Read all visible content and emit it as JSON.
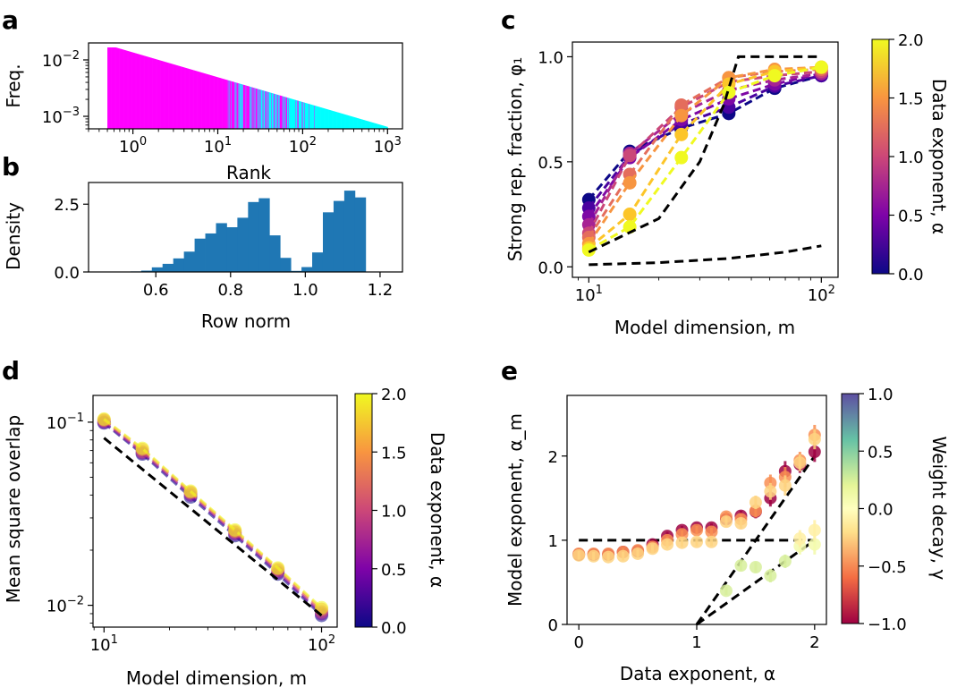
{
  "figure": {
    "panel_labels": [
      "a",
      "b",
      "c",
      "d",
      "e"
    ]
  },
  "chart_data": [
    {
      "panel": "a",
      "type": "bar",
      "scale": "log-log",
      "xlabel": "Rank",
      "ylabel": "Freq.",
      "xticks": [
        "10^0",
        "10^1",
        "10^2",
        "10^3"
      ],
      "yticks": [
        "10^-2",
        "10^-3"
      ],
      "xlim": [
        0.3,
        1500
      ],
      "ylim": [
        0.0006,
        0.02
      ],
      "rank_range": [
        0.5,
        1000
      ],
      "freq_at_rank1": 0.0135,
      "decay_exponent": 0.44,
      "colors": {
        "strong": "#ff00ff",
        "weak": "#00ffff"
      },
      "strong_fraction_ranks": {
        "all_strong_until": 12,
        "mixed_until": 200,
        "weak_after": 200
      }
    },
    {
      "panel": "b",
      "type": "bar",
      "xlabel": "Row norm",
      "ylabel": "Density",
      "xticks": [
        "0.6",
        "0.8",
        "1.0",
        "1.2"
      ],
      "yticks": [
        "0.0",
        "2.5"
      ],
      "xlim": [
        0.42,
        1.26
      ],
      "ylim": [
        0,
        3.3
      ],
      "bin_edges_start": 0.475,
      "bin_width": 0.0286,
      "values": [
        0,
        0,
        0.02,
        0.05,
        0.17,
        0.3,
        0.5,
        0.75,
        1.23,
        1.42,
        1.8,
        1.65,
        2.0,
        2.58,
        2.72,
        1.35,
        0.52,
        0.04,
        0.18,
        0.72,
        2.2,
        2.62,
        3.0,
        2.75
      ],
      "color": "#1f77b4"
    },
    {
      "panel": "c",
      "type": "line",
      "xscale": "log",
      "xlabel": "Model dimension, m",
      "ylabel": "Strong rep. fraction, φ₁",
      "xticks": [
        "10^1",
        "10^2"
      ],
      "yticks": [
        "0.0",
        "0.5",
        "1.0"
      ],
      "xlim": [
        8.5,
        118
      ],
      "ylim": [
        -0.05,
        1.07
      ],
      "x": [
        10,
        15,
        25,
        40,
        63,
        100
      ],
      "series": [
        {
          "alpha": 0.0,
          "values": [
            0.32,
            0.55,
            0.66,
            0.73,
            0.85,
            0.91
          ]
        },
        {
          "alpha": 0.25,
          "values": [
            0.28,
            0.53,
            0.68,
            0.76,
            0.86,
            0.91
          ]
        },
        {
          "alpha": 0.5,
          "values": [
            0.24,
            0.52,
            0.7,
            0.8,
            0.87,
            0.92
          ]
        },
        {
          "alpha": 0.75,
          "values": [
            0.2,
            0.54,
            0.73,
            0.84,
            0.89,
            0.92
          ]
        },
        {
          "alpha": 1.0,
          "values": [
            0.16,
            0.53,
            0.76,
            0.88,
            0.91,
            0.93
          ]
        },
        {
          "alpha": 1.25,
          "values": [
            0.14,
            0.44,
            0.77,
            0.9,
            0.93,
            0.94
          ]
        },
        {
          "alpha": 1.5,
          "values": [
            0.11,
            0.4,
            0.72,
            0.9,
            0.94,
            0.95
          ]
        },
        {
          "alpha": 1.75,
          "values": [
            0.09,
            0.25,
            0.63,
            0.87,
            0.93,
            0.95
          ]
        },
        {
          "alpha": 2.0,
          "values": [
            0.08,
            0.19,
            0.52,
            0.83,
            0.91,
            0.95
          ]
        }
      ],
      "reference_lines": [
        {
          "x": [
            10,
            20,
            30,
            38,
            44,
            100
          ],
          "values": [
            0.07,
            0.23,
            0.5,
            0.77,
            1.0,
            1.0
          ]
        },
        {
          "x": [
            10,
            20,
            40,
            70,
            100
          ],
          "values": [
            0.01,
            0.02,
            0.04,
            0.07,
            0.1
          ]
        }
      ],
      "colorbar": {
        "label": "Data exponent, α",
        "ticks": [
          "0.0",
          "0.5",
          "1.0",
          "1.5",
          "2.0"
        ],
        "range": [
          0,
          2
        ],
        "colormap": "plasma"
      }
    },
    {
      "panel": "d",
      "type": "line",
      "scale": "log-log",
      "xlabel": "Model dimension, m",
      "ylabel": "Mean square overlap",
      "xticks": [
        "10^1",
        "10^2"
      ],
      "yticks": [
        "10^-1",
        "10^-2"
      ],
      "xlim": [
        8.9,
        118
      ],
      "ylim": [
        0.0076,
        0.14
      ],
      "x": [
        10,
        15,
        25,
        40,
        63,
        100
      ],
      "series": [
        {
          "alpha": 0.0,
          "values": [
            0.099,
            0.067,
            0.039,
            0.024,
            0.0148,
            0.0088
          ]
        },
        {
          "alpha": 0.5,
          "values": [
            0.1,
            0.068,
            0.04,
            0.0245,
            0.0151,
            0.009
          ]
        },
        {
          "alpha": 1.0,
          "values": [
            0.102,
            0.069,
            0.041,
            0.025,
            0.0155,
            0.0092
          ]
        },
        {
          "alpha": 1.5,
          "values": [
            0.103,
            0.071,
            0.0415,
            0.0254,
            0.0158,
            0.0095
          ]
        },
        {
          "alpha": 2.0,
          "values": [
            0.104,
            0.072,
            0.042,
            0.0258,
            0.016,
            0.0097
          ]
        }
      ],
      "reference_line": {
        "x": [
          10,
          100
        ],
        "values": [
          0.082,
          0.0088
        ]
      },
      "colorbar": {
        "label": "Data exponent, α",
        "ticks": [
          "0.0",
          "0.5",
          "1.0",
          "1.5",
          "2.0"
        ],
        "range": [
          0,
          2
        ],
        "colormap": "plasma"
      }
    },
    {
      "panel": "e",
      "type": "scatter",
      "xlabel": "Data exponent, α",
      "ylabel": "Model exponent, α_m",
      "xticks": [
        "0",
        "1",
        "2"
      ],
      "yticks": [
        "0",
        "1",
        "2"
      ],
      "xlim": [
        -0.1,
        2.1
      ],
      "ylim": [
        0,
        2.72
      ],
      "points": [
        {
          "x": 0.0,
          "y": 0.83,
          "gamma": -1.0,
          "err": 0.05
        },
        {
          "x": 0.125,
          "y": 0.83,
          "gamma": -1.0,
          "err": 0.05
        },
        {
          "x": 0.25,
          "y": 0.83,
          "gamma": -1.0,
          "err": 0.05
        },
        {
          "x": 0.375,
          "y": 0.86,
          "gamma": -1.0,
          "err": 0.05
        },
        {
          "x": 0.5,
          "y": 0.87,
          "gamma": -1.0,
          "err": 0.05
        },
        {
          "x": 0.625,
          "y": 0.95,
          "gamma": -1.0,
          "err": 0.05
        },
        {
          "x": 0.75,
          "y": 1.05,
          "gamma": -1.0,
          "err": 0.05
        },
        {
          "x": 0.875,
          "y": 1.12,
          "gamma": -1.0,
          "err": 0.05
        },
        {
          "x": 1.0,
          "y": 1.15,
          "gamma": -1.0,
          "err": 0.05
        },
        {
          "x": 1.125,
          "y": 1.15,
          "gamma": -1.0,
          "err": 0.05
        },
        {
          "x": 1.25,
          "y": 1.25,
          "gamma": -1.0,
          "err": 0.06
        },
        {
          "x": 1.375,
          "y": 1.29,
          "gamma": -1.0,
          "err": 0.06
        },
        {
          "x": 1.5,
          "y": 1.34,
          "gamma": -1.0,
          "err": 0.08
        },
        {
          "x": 1.625,
          "y": 1.5,
          "gamma": -1.0,
          "err": 0.1
        },
        {
          "x": 1.75,
          "y": 1.82,
          "gamma": -1.0,
          "err": 0.12
        },
        {
          "x": 1.875,
          "y": 1.9,
          "gamma": -1.0,
          "err": 0.1
        },
        {
          "x": 2.0,
          "y": 2.05,
          "gamma": -1.0,
          "err": 0.12
        },
        {
          "x": 0.0,
          "y": 0.84,
          "gamma": -0.5,
          "err": 0.05
        },
        {
          "x": 0.125,
          "y": 0.84,
          "gamma": -0.5,
          "err": 0.05
        },
        {
          "x": 0.25,
          "y": 0.84,
          "gamma": -0.5,
          "err": 0.05
        },
        {
          "x": 0.375,
          "y": 0.86,
          "gamma": -0.5,
          "err": 0.05
        },
        {
          "x": 0.5,
          "y": 0.88,
          "gamma": -0.5,
          "err": 0.05
        },
        {
          "x": 0.625,
          "y": 0.92,
          "gamma": -0.5,
          "err": 0.05
        },
        {
          "x": 0.75,
          "y": 1.0,
          "gamma": -0.5,
          "err": 0.05
        },
        {
          "x": 0.875,
          "y": 1.07,
          "gamma": -0.5,
          "err": 0.05
        },
        {
          "x": 1.0,
          "y": 1.12,
          "gamma": -0.5,
          "err": 0.05
        },
        {
          "x": 1.125,
          "y": 1.1,
          "gamma": -0.5,
          "err": 0.05
        },
        {
          "x": 1.25,
          "y": 1.28,
          "gamma": -0.5,
          "err": 0.06
        },
        {
          "x": 1.375,
          "y": 1.25,
          "gamma": -0.5,
          "err": 0.06
        },
        {
          "x": 1.5,
          "y": 1.35,
          "gamma": -0.5,
          "err": 0.08
        },
        {
          "x": 1.625,
          "y": 1.68,
          "gamma": -0.5,
          "err": 0.1
        },
        {
          "x": 1.75,
          "y": 1.75,
          "gamma": -0.5,
          "err": 0.12
        },
        {
          "x": 1.875,
          "y": 1.95,
          "gamma": -0.5,
          "err": 0.1
        },
        {
          "x": 2.0,
          "y": 2.25,
          "gamma": -0.5,
          "err": 0.12
        },
        {
          "x": 0.0,
          "y": 0.82,
          "gamma": -0.25,
          "err": 0.05
        },
        {
          "x": 0.125,
          "y": 0.81,
          "gamma": -0.25,
          "err": 0.05
        },
        {
          "x": 0.25,
          "y": 0.8,
          "gamma": -0.25,
          "err": 0.05
        },
        {
          "x": 0.375,
          "y": 0.81,
          "gamma": -0.25,
          "err": 0.05
        },
        {
          "x": 0.5,
          "y": 0.84,
          "gamma": -0.25,
          "err": 0.05
        },
        {
          "x": 0.625,
          "y": 0.9,
          "gamma": -0.25,
          "err": 0.05
        },
        {
          "x": 0.75,
          "y": 0.95,
          "gamma": -0.25,
          "err": 0.05
        },
        {
          "x": 0.875,
          "y": 0.97,
          "gamma": -0.25,
          "err": 0.05
        },
        {
          "x": 1.0,
          "y": 0.98,
          "gamma": -0.25,
          "err": 0.05
        },
        {
          "x": 1.125,
          "y": 0.98,
          "gamma": -0.25,
          "err": 0.05
        },
        {
          "x": 1.25,
          "y": 1.22,
          "gamma": -0.25,
          "err": 0.06
        },
        {
          "x": 1.375,
          "y": 1.2,
          "gamma": -0.25,
          "err": 0.06
        },
        {
          "x": 1.5,
          "y": 1.45,
          "gamma": -0.25,
          "err": 0.08
        },
        {
          "x": 1.625,
          "y": 1.58,
          "gamma": -0.25,
          "err": 0.1
        },
        {
          "x": 1.75,
          "y": 1.65,
          "gamma": -0.25,
          "err": 0.12
        },
        {
          "x": 1.875,
          "y": 1.92,
          "gamma": -0.25,
          "err": 0.1
        },
        {
          "x": 2.0,
          "y": 2.2,
          "gamma": -0.25,
          "err": 0.12
        },
        {
          "x": 1.25,
          "y": 0.4,
          "gamma": 0.25,
          "err": 0.05
        },
        {
          "x": 1.375,
          "y": 0.7,
          "gamma": 0.25,
          "err": 0.06
        },
        {
          "x": 1.5,
          "y": 0.68,
          "gamma": 0.25,
          "err": 0.06
        },
        {
          "x": 1.625,
          "y": 0.58,
          "gamma": 0.25,
          "err": 0.08
        },
        {
          "x": 1.75,
          "y": 0.75,
          "gamma": 0.25,
          "err": 0.08
        },
        {
          "x": 1.875,
          "y": 0.93,
          "gamma": 0.1,
          "err": 0.1
        },
        {
          "x": 2.0,
          "y": 0.95,
          "gamma": 0.1,
          "err": 0.12
        },
        {
          "x": 1.875,
          "y": 1.02,
          "gamma": -0.1,
          "err": 0.1
        },
        {
          "x": 2.0,
          "y": 1.12,
          "gamma": -0.1,
          "err": 0.12
        }
      ],
      "reference_lines": [
        {
          "x": [
            0,
            2
          ],
          "values": [
            1,
            1
          ]
        },
        {
          "x": [
            1,
            2
          ],
          "values": [
            0,
            2
          ]
        },
        {
          "x": [
            1,
            2
          ],
          "values": [
            0,
            1
          ]
        }
      ],
      "colorbar": {
        "label": "Weight decay, γ",
        "ticks": [
          "1.0",
          "0.5",
          "0.0",
          "−0.5",
          "−1.0"
        ],
        "range": [
          -1,
          1
        ],
        "colormap": "spectral"
      }
    }
  ]
}
